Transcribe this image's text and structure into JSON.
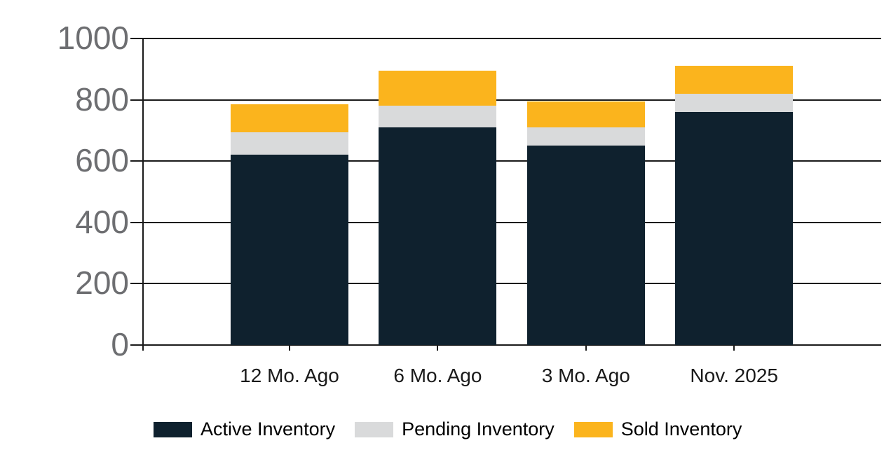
{
  "chart_data": {
    "type": "bar",
    "stacked": true,
    "title": "",
    "categories": [
      "12 Mo. Ago",
      "6 Mo. Ago",
      "3 Mo. Ago",
      "Nov. 2025"
    ],
    "series": [
      {
        "name": "Active Inventory",
        "color": "#0F212E",
        "values": [
          620,
          710,
          650,
          760
        ]
      },
      {
        "name": "Pending Inventory",
        "color": "#D9DADB",
        "values": [
          75,
          70,
          60,
          60
        ]
      },
      {
        "name": "Sold Inventory",
        "color": "#FBB41D",
        "values": [
          90,
          115,
          85,
          90
        ]
      }
    ],
    "stack_totals": [
      785,
      895,
      795,
      910
    ],
    "xlabel": "",
    "ylabel": "",
    "ylim": [
      0,
      1000
    ],
    "y_ticks": [
      0,
      200,
      400,
      600,
      800,
      1000
    ],
    "grid": true,
    "legend_position": "bottom",
    "colors": {
      "background": "#FFFFFF",
      "axis_line": "#1A1A1A",
      "gridline": "#1A1A1A",
      "y_tick_label": "#6D6E71",
      "x_tick_label": "#1A1A1A",
      "legend_text": "#000000"
    }
  }
}
